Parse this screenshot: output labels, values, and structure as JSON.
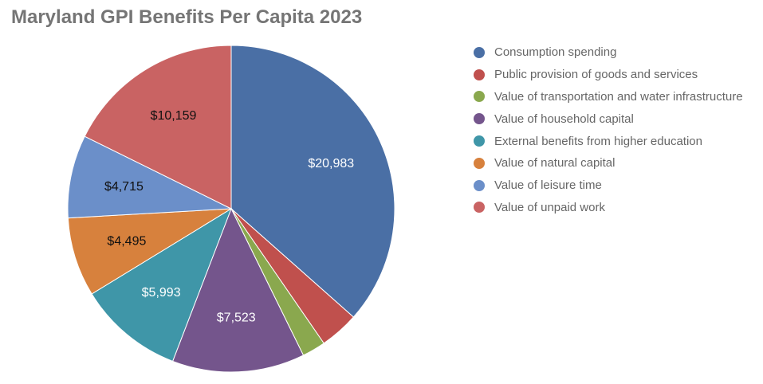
{
  "chart_data": {
    "type": "pie",
    "title": "Maryland GPI Benefits Per Capita 2023",
    "legend_position": "right",
    "slices": [
      {
        "label": "Consumption spending",
        "value": 20983,
        "value_label": "$20,983",
        "color": "#4a6fa5",
        "label_color": "#ffffff"
      },
      {
        "label": "Public provision of goods and services",
        "value": 2218,
        "value_label": "",
        "color": "#c0504d",
        "label_color": "#ffffff"
      },
      {
        "label": "Value of transportation and water infrastructure",
        "value": 1330,
        "value_label": "",
        "color": "#8aa84e",
        "label_color": "#ffffff"
      },
      {
        "label": "Value of household capital",
        "value": 7523,
        "value_label": "$7,523",
        "color": "#74558c",
        "label_color": "#ffffff"
      },
      {
        "label": "External benefits from higher education",
        "value": 5993,
        "value_label": "$5,993",
        "color": "#3f96a8",
        "label_color": "#ffffff"
      },
      {
        "label": "Value of natural capital",
        "value": 4495,
        "value_label": "$4,495",
        "color": "#d7813d",
        "label_color": "#111111"
      },
      {
        "label": "Value of leisure time",
        "value": 4715,
        "value_label": "$4,715",
        "color": "#6b8fc9",
        "label_color": "#111111"
      },
      {
        "label": "Value of unpaid work",
        "value": 10159,
        "value_label": "$10,159",
        "color": "#c96363",
        "label_color": "#111111"
      }
    ]
  }
}
